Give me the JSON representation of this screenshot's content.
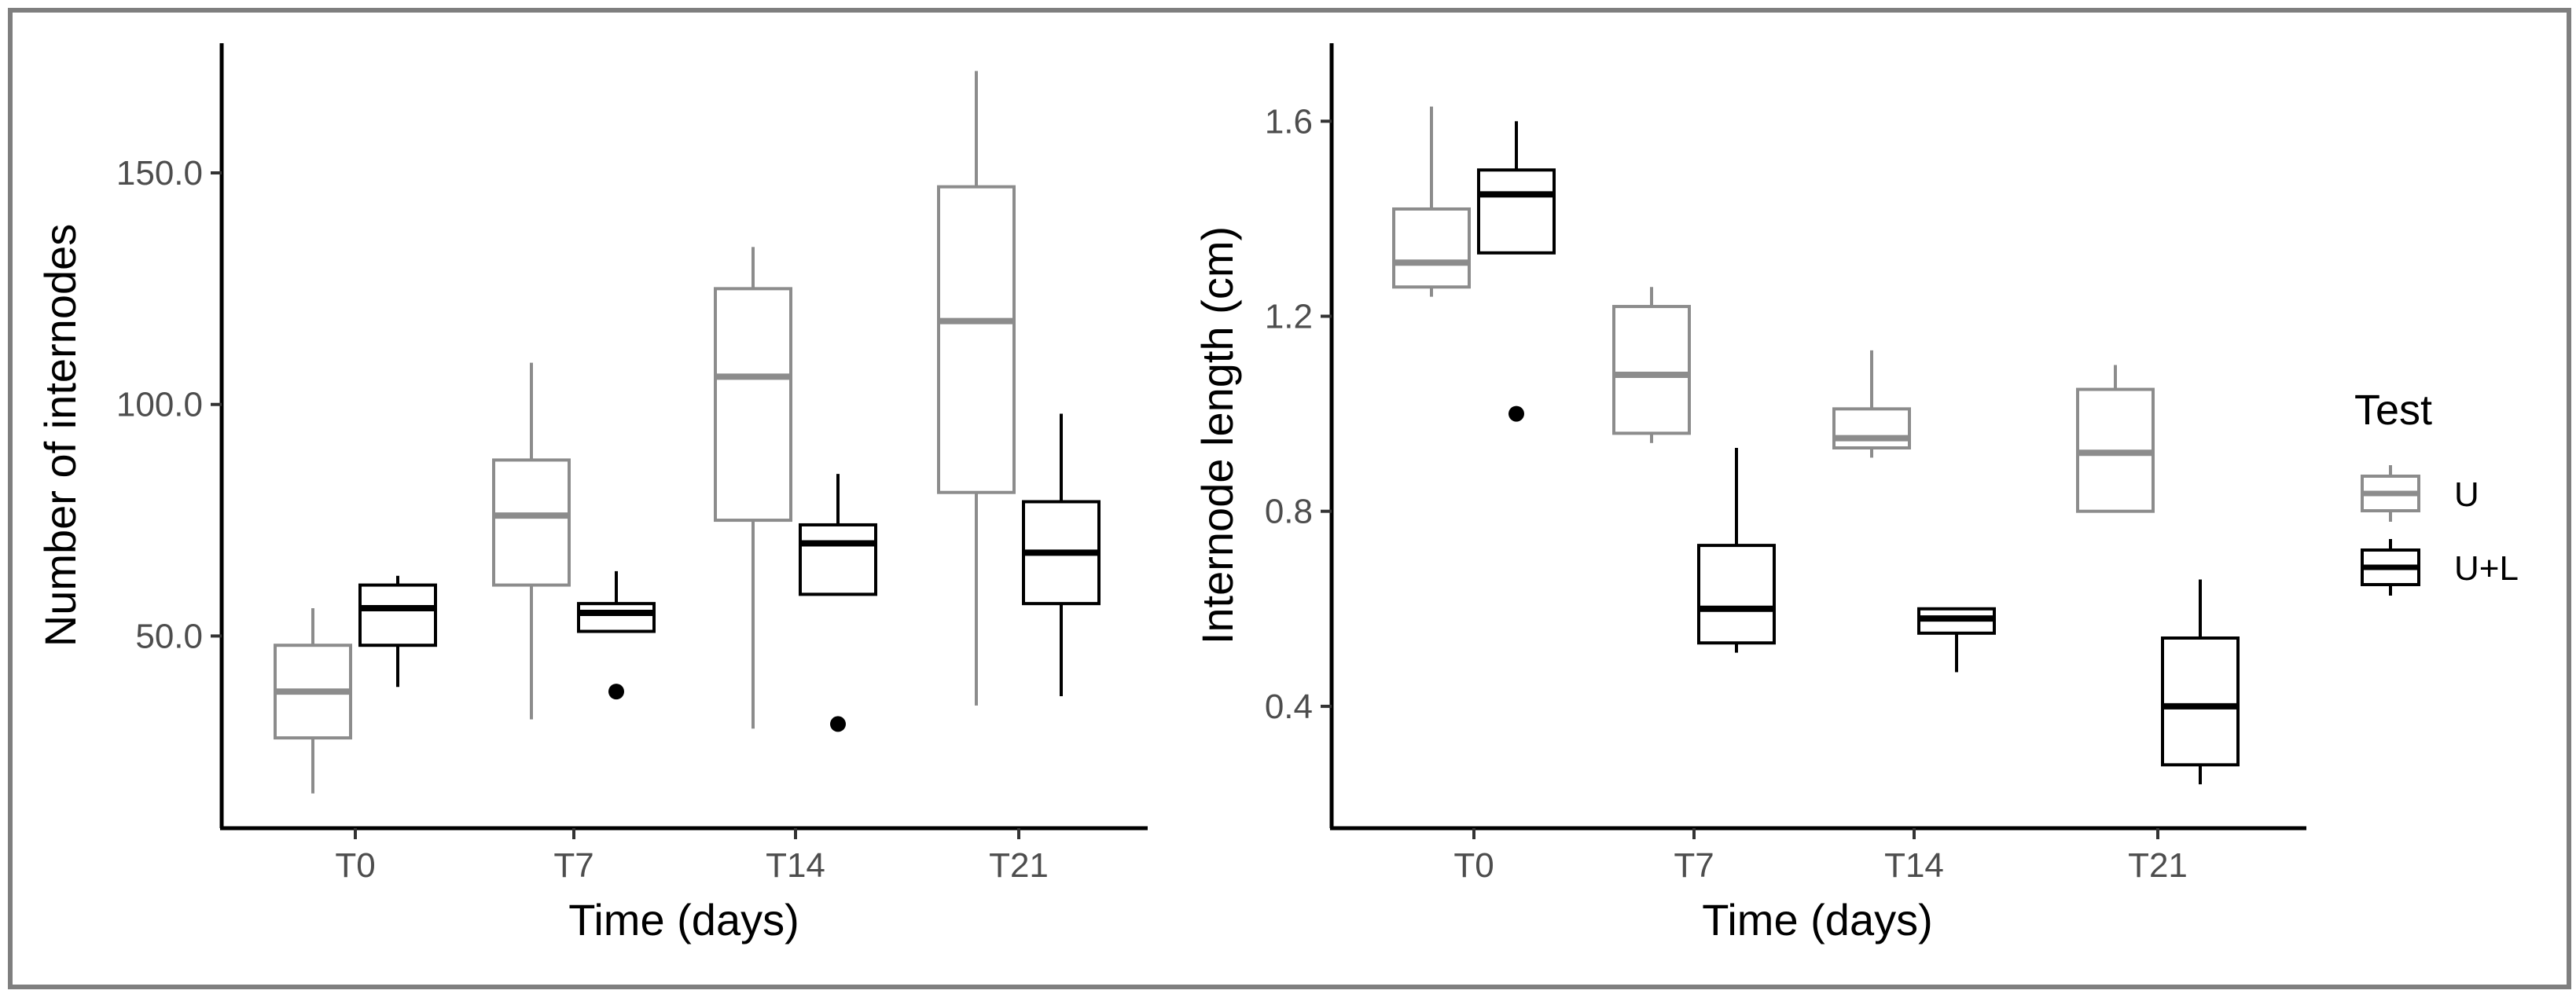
{
  "chart_data": [
    {
      "type": "boxplot",
      "categories": [
        "T0",
        "T7",
        "T14",
        "T21"
      ],
      "xlabel": "Time (days)",
      "ylabel": "Number of internodes",
      "ylim": [
        8.5,
        178
      ],
      "yticks": [
        50,
        100,
        150
      ],
      "ytick_labels": [
        "50.0",
        "100.0",
        "150.0"
      ],
      "series": [
        {
          "name": "U",
          "color": "#8c8c8c",
          "boxes": [
            {
              "min": 16,
              "q1": 28,
              "median": 38,
              "q3": 48,
              "max": 56,
              "outliers": []
            },
            {
              "min": 32,
              "q1": 61,
              "median": 76,
              "q3": 88,
              "max": 109,
              "outliers": []
            },
            {
              "min": 30,
              "q1": 75,
              "median": 106,
              "q3": 125,
              "max": 134,
              "outliers": []
            },
            {
              "min": 35,
              "q1": 81,
              "median": 118,
              "q3": 147,
              "max": 172,
              "outliers": []
            }
          ]
        },
        {
          "name": "U+L",
          "color": "#000000",
          "boxes": [
            {
              "min": 39,
              "q1": 48,
              "median": 56,
              "q3": 61,
              "max": 63,
              "outliers": []
            },
            {
              "min": 51,
              "q1": 51,
              "median": 55,
              "q3": 57,
              "max": 64,
              "outliers": [
                38
              ]
            },
            {
              "min": 59,
              "q1": 59,
              "median": 70,
              "q3": 74,
              "max": 85,
              "outliers": [
                31
              ]
            },
            {
              "min": 37,
              "q1": 57,
              "median": 68,
              "q3": 79,
              "max": 98,
              "outliers": []
            }
          ]
        }
      ]
    },
    {
      "type": "boxplot",
      "categories": [
        "T0",
        "T7",
        "T14",
        "T21"
      ],
      "xlabel": "Time (days)",
      "ylabel": "Internode length (cm)",
      "ylim": [
        0.15,
        1.76
      ],
      "yticks": [
        0.4,
        0.8,
        1.2,
        1.6
      ],
      "ytick_labels": [
        "0.4",
        "0.8",
        "1.2",
        "1.6"
      ],
      "series": [
        {
          "name": "U",
          "color": "#8c8c8c",
          "boxes": [
            {
              "min": 1.24,
              "q1": 1.26,
              "median": 1.31,
              "q3": 1.42,
              "max": 1.63,
              "outliers": []
            },
            {
              "min": 0.94,
              "q1": 0.96,
              "median": 1.08,
              "q3": 1.22,
              "max": 1.26,
              "outliers": []
            },
            {
              "min": 0.91,
              "q1": 0.93,
              "median": 0.95,
              "q3": 1.01,
              "max": 1.13,
              "outliers": []
            },
            {
              "min": 0.8,
              "q1": 0.8,
              "median": 0.92,
              "q3": 1.05,
              "max": 1.1,
              "outliers": []
            }
          ]
        },
        {
          "name": "U+L",
          "color": "#000000",
          "boxes": [
            {
              "min": 1.33,
              "q1": 1.33,
              "median": 1.45,
              "q3": 1.5,
              "max": 1.6,
              "outliers": [
                1.0
              ]
            },
            {
              "min": 0.51,
              "q1": 0.53,
              "median": 0.6,
              "q3": 0.73,
              "max": 0.93,
              "outliers": []
            },
            {
              "min": 0.47,
              "q1": 0.55,
              "median": 0.58,
              "q3": 0.6,
              "max": 0.6,
              "outliers": []
            },
            {
              "min": 0.24,
              "q1": 0.28,
              "median": 0.4,
              "q3": 0.54,
              "max": 0.66,
              "outliers": []
            }
          ]
        }
      ]
    }
  ],
  "legend": {
    "title": "Test",
    "items": [
      {
        "label": "U",
        "color": "#8c8c8c"
      },
      {
        "label": "U+L",
        "color": "#000000"
      }
    ]
  }
}
